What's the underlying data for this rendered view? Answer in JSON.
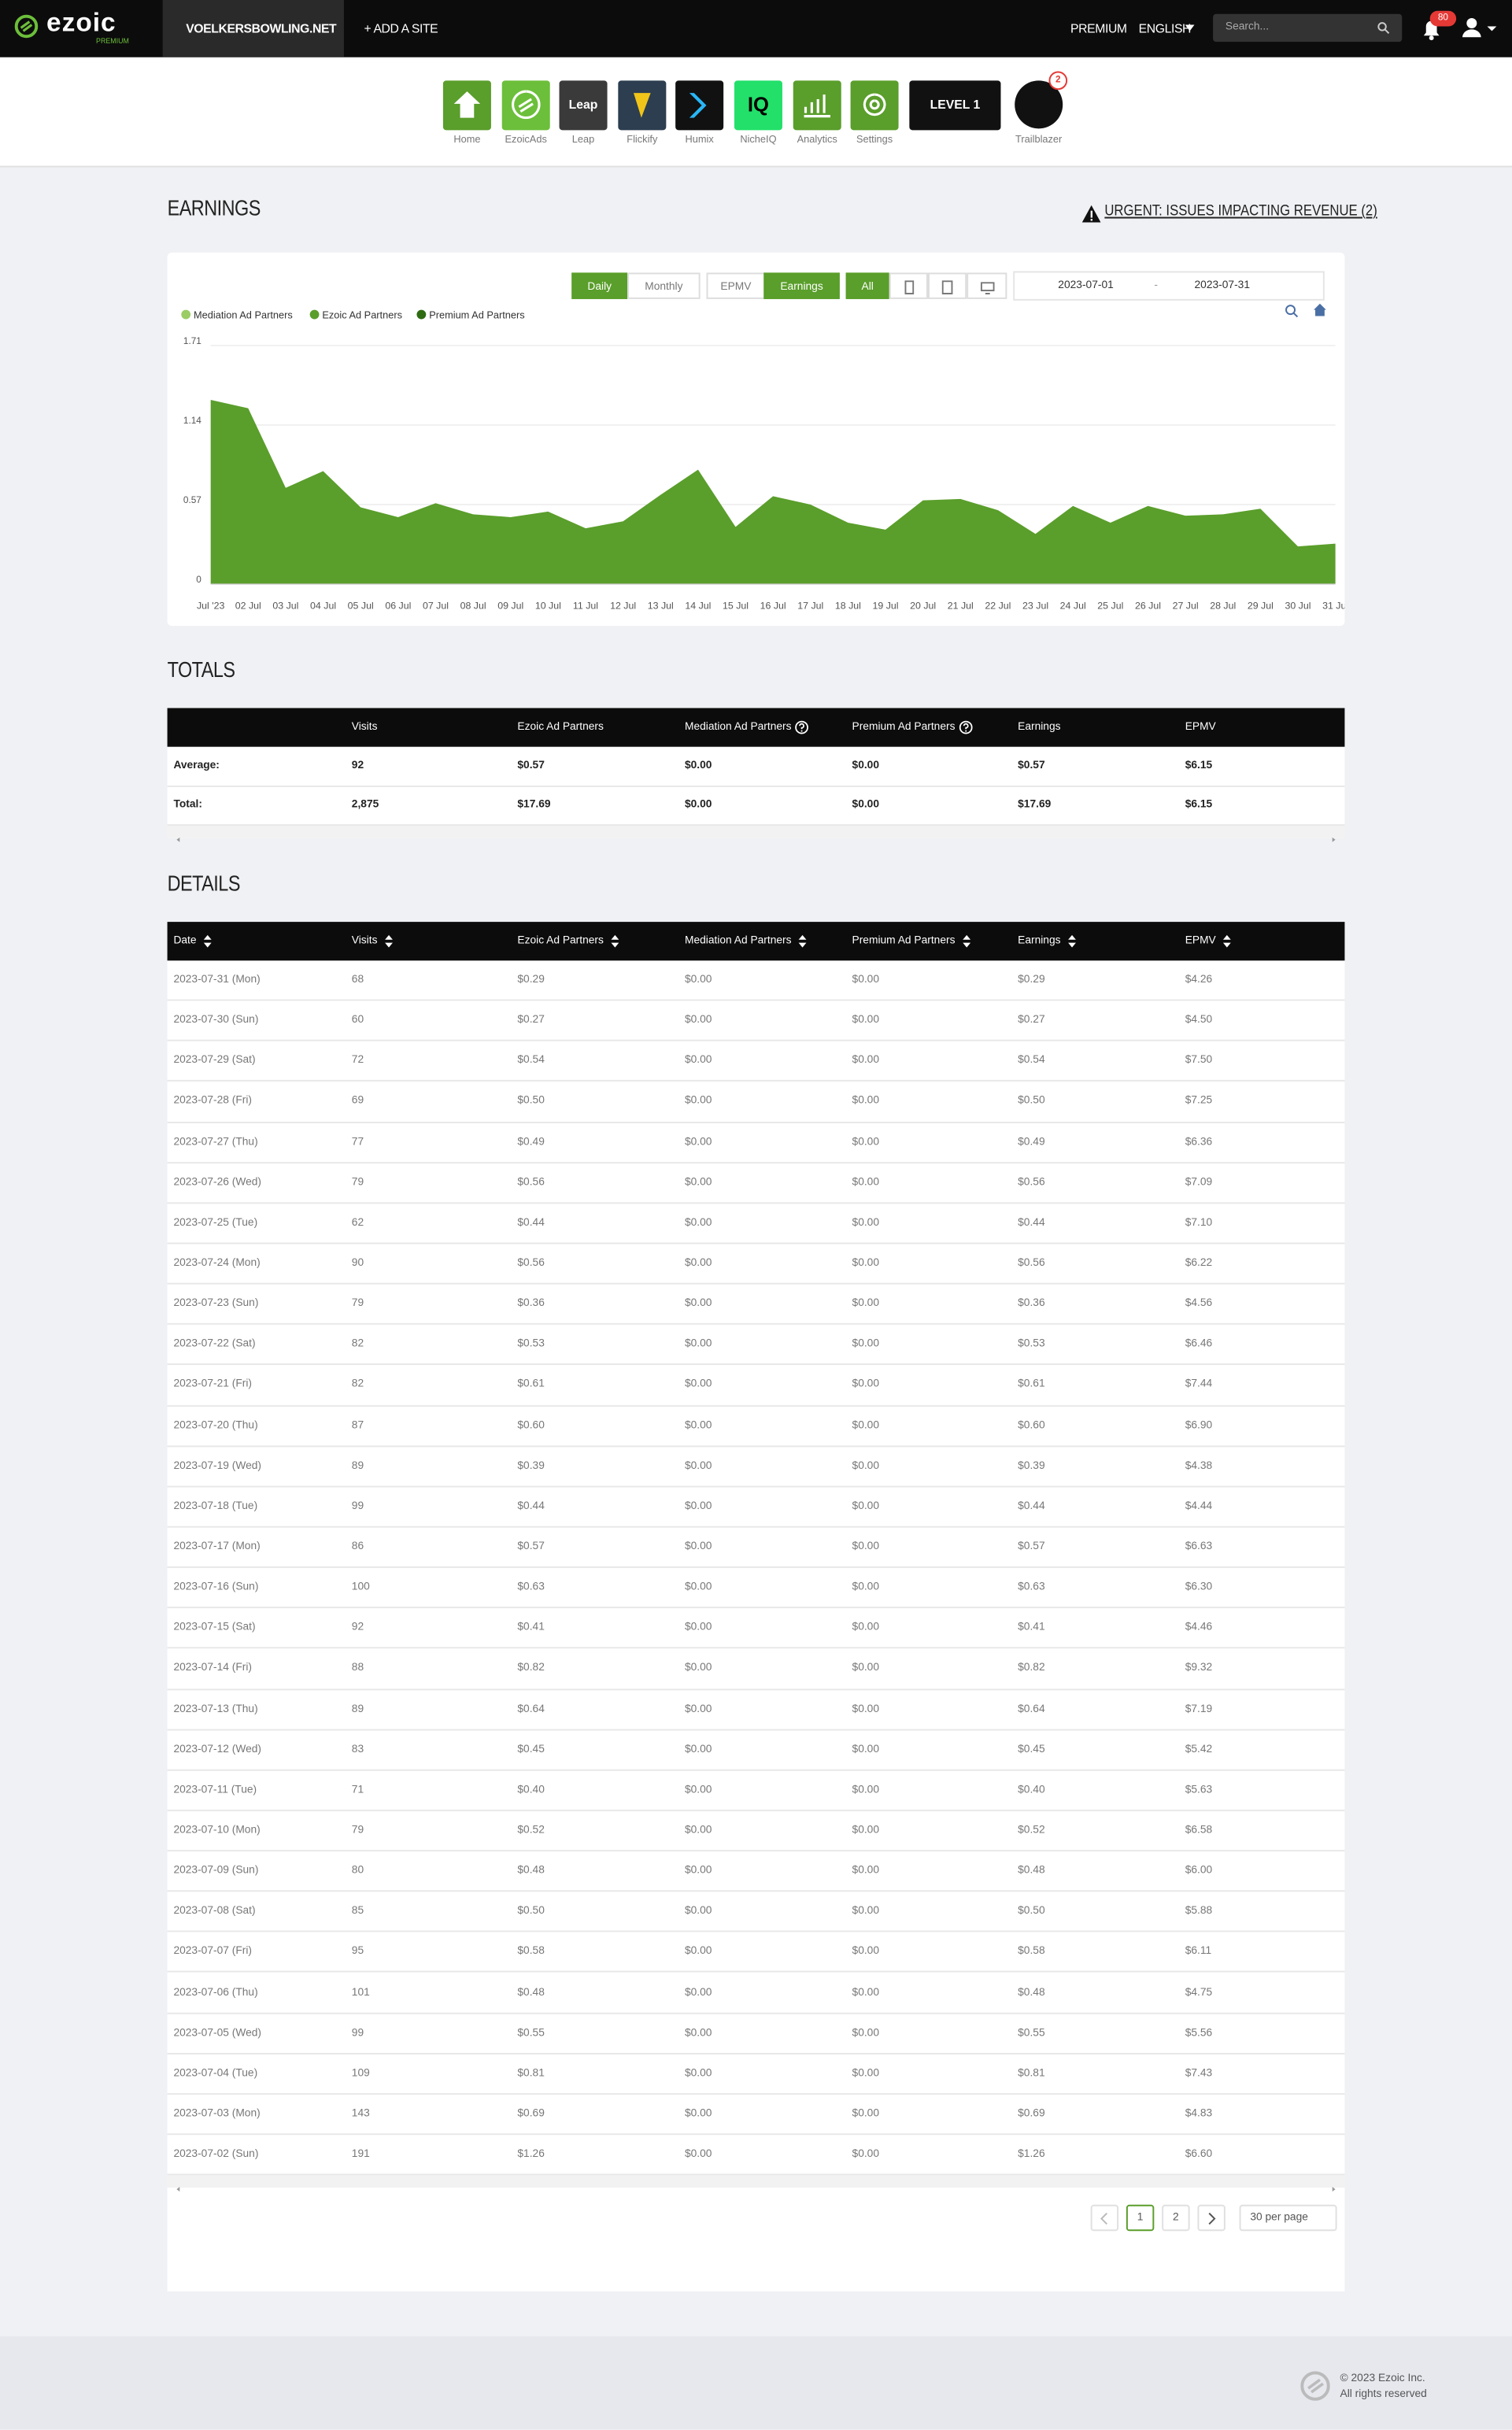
{
  "nav": {
    "logo": "ezoic",
    "logo_sub": "PREMIUM",
    "site": "VOELKERSBOWLING.NET",
    "add_site": "+ ADD A SITE",
    "premium": "PREMIUM",
    "language": "ENGLISH",
    "search_placeholder": "Search...",
    "notifications": "80"
  },
  "apps": [
    {
      "label": "Home",
      "color": "#5a9e2b"
    },
    {
      "label": "EzoicAds",
      "color": "#6cbf3a"
    },
    {
      "label": "Leap",
      "color": "#3a3a3a",
      "icon_text": "Leap"
    },
    {
      "label": "Flickify",
      "color": "#2c3e50"
    },
    {
      "label": "Humix",
      "color": "#111111"
    },
    {
      "label": "NicheIQ",
      "color": "#22e06a",
      "icon_text": "IQ"
    },
    {
      "label": "Analytics",
      "color": "#5a9e2b"
    },
    {
      "label": "Settings",
      "color": "#5a9e2b"
    },
    {
      "color": "#111111",
      "icon_text": "LEVEL 1"
    },
    {
      "label": "Trailblazer",
      "color": "#111111",
      "icon_text": "2"
    }
  ],
  "earnings": {
    "heading": "EARNINGS",
    "alert": "URGENT: ISSUES IMPACTING REVENUE (2)",
    "controls": {
      "period": [
        "Daily",
        "Monthly"
      ],
      "metric": [
        "EPMV",
        "Earnings"
      ],
      "device": "All",
      "date_from": "2023-07-01",
      "date_sep": "-",
      "date_to": "2023-07-31"
    }
  },
  "chart_data": {
    "type": "area",
    "stacked": true,
    "grid": true,
    "categories": [
      "Jul '23",
      "02 Jul",
      "03 Jul",
      "04 Jul",
      "05 Jul",
      "06 Jul",
      "07 Jul",
      "08 Jul",
      "09 Jul",
      "10 Jul",
      "11 Jul",
      "12 Jul",
      "13 Jul",
      "14 Jul",
      "15 Jul",
      "16 Jul",
      "17 Jul",
      "18 Jul",
      "19 Jul",
      "20 Jul",
      "21 Jul",
      "22 Jul",
      "23 Jul",
      "24 Jul",
      "25 Jul",
      "26 Jul",
      "27 Jul",
      "28 Jul",
      "29 Jul",
      "30 Jul",
      "31 Jul"
    ],
    "series": [
      {
        "name": "Mediation Ad Partners",
        "color": "#9ccc65",
        "values": [
          0,
          0,
          0,
          0,
          0,
          0,
          0,
          0,
          0,
          0,
          0,
          0,
          0,
          0,
          0,
          0,
          0,
          0,
          0,
          0,
          0,
          0,
          0,
          0,
          0,
          0,
          0,
          0,
          0,
          0,
          0
        ]
      },
      {
        "name": "Ezoic Ad Partners",
        "color": "#5a9e2b",
        "values": [
          1.32,
          1.26,
          0.69,
          0.81,
          0.55,
          0.48,
          0.58,
          0.5,
          0.48,
          0.52,
          0.4,
          0.45,
          0.64,
          0.82,
          0.41,
          0.63,
          0.57,
          0.44,
          0.39,
          0.6,
          0.61,
          0.53,
          0.36,
          0.56,
          0.44,
          0.56,
          0.49,
          0.5,
          0.54,
          0.27,
          0.29
        ]
      },
      {
        "name": "Premium Ad Partners",
        "color": "#2e6b12",
        "values": [
          0,
          0,
          0,
          0,
          0,
          0,
          0,
          0,
          0,
          0,
          0,
          0,
          0,
          0,
          0,
          0,
          0,
          0,
          0,
          0,
          0,
          0,
          0,
          0,
          0,
          0,
          0,
          0,
          0,
          0,
          0
        ]
      }
    ],
    "ylim": [
      0,
      1.71
    ],
    "yticks": [
      0,
      0.57,
      1.14,
      1.71
    ]
  },
  "totals": {
    "heading": "TOTALS",
    "columns": [
      "Visits",
      "Ezoic Ad Partners",
      "Mediation Ad Partners",
      "Premium Ad Partners",
      "Earnings",
      "EPMV"
    ],
    "rows": [
      [
        "Average:",
        "92",
        "$0.57",
        "$0.00",
        "$0.00",
        "$0.57",
        "$6.15"
      ],
      [
        "Total:",
        "2,875",
        "$17.69",
        "$0.00",
        "$0.00",
        "$17.69",
        "$6.15"
      ]
    ]
  },
  "details": {
    "heading": "DETAILS",
    "columns": [
      "Date",
      "Visits",
      "Ezoic Ad Partners",
      "Mediation Ad Partners",
      "Premium Ad Partners",
      "Earnings",
      "EPMV"
    ],
    "rows": [
      [
        "2023-07-31 (Mon)",
        "68",
        "$0.29",
        "$0.00",
        "$0.00",
        "$0.29",
        "$4.26"
      ],
      [
        "2023-07-30 (Sun)",
        "60",
        "$0.27",
        "$0.00",
        "$0.00",
        "$0.27",
        "$4.50"
      ],
      [
        "2023-07-29 (Sat)",
        "72",
        "$0.54",
        "$0.00",
        "$0.00",
        "$0.54",
        "$7.50"
      ],
      [
        "2023-07-28 (Fri)",
        "69",
        "$0.50",
        "$0.00",
        "$0.00",
        "$0.50",
        "$7.25"
      ],
      [
        "2023-07-27 (Thu)",
        "77",
        "$0.49",
        "$0.00",
        "$0.00",
        "$0.49",
        "$6.36"
      ],
      [
        "2023-07-26 (Wed)",
        "79",
        "$0.56",
        "$0.00",
        "$0.00",
        "$0.56",
        "$7.09"
      ],
      [
        "2023-07-25 (Tue)",
        "62",
        "$0.44",
        "$0.00",
        "$0.00",
        "$0.44",
        "$7.10"
      ],
      [
        "2023-07-24 (Mon)",
        "90",
        "$0.56",
        "$0.00",
        "$0.00",
        "$0.56",
        "$6.22"
      ],
      [
        "2023-07-23 (Sun)",
        "79",
        "$0.36",
        "$0.00",
        "$0.00",
        "$0.36",
        "$4.56"
      ],
      [
        "2023-07-22 (Sat)",
        "82",
        "$0.53",
        "$0.00",
        "$0.00",
        "$0.53",
        "$6.46"
      ],
      [
        "2023-07-21 (Fri)",
        "82",
        "$0.61",
        "$0.00",
        "$0.00",
        "$0.61",
        "$7.44"
      ],
      [
        "2023-07-20 (Thu)",
        "87",
        "$0.60",
        "$0.00",
        "$0.00",
        "$0.60",
        "$6.90"
      ],
      [
        "2023-07-19 (Wed)",
        "89",
        "$0.39",
        "$0.00",
        "$0.00",
        "$0.39",
        "$4.38"
      ],
      [
        "2023-07-18 (Tue)",
        "99",
        "$0.44",
        "$0.00",
        "$0.00",
        "$0.44",
        "$4.44"
      ],
      [
        "2023-07-17 (Mon)",
        "86",
        "$0.57",
        "$0.00",
        "$0.00",
        "$0.57",
        "$6.63"
      ],
      [
        "2023-07-16 (Sun)",
        "100",
        "$0.63",
        "$0.00",
        "$0.00",
        "$0.63",
        "$6.30"
      ],
      [
        "2023-07-15 (Sat)",
        "92",
        "$0.41",
        "$0.00",
        "$0.00",
        "$0.41",
        "$4.46"
      ],
      [
        "2023-07-14 (Fri)",
        "88",
        "$0.82",
        "$0.00",
        "$0.00",
        "$0.82",
        "$9.32"
      ],
      [
        "2023-07-13 (Thu)",
        "89",
        "$0.64",
        "$0.00",
        "$0.00",
        "$0.64",
        "$7.19"
      ],
      [
        "2023-07-12 (Wed)",
        "83",
        "$0.45",
        "$0.00",
        "$0.00",
        "$0.45",
        "$5.42"
      ],
      [
        "2023-07-11 (Tue)",
        "71",
        "$0.40",
        "$0.00",
        "$0.00",
        "$0.40",
        "$5.63"
      ],
      [
        "2023-07-10 (Mon)",
        "79",
        "$0.52",
        "$0.00",
        "$0.00",
        "$0.52",
        "$6.58"
      ],
      [
        "2023-07-09 (Sun)",
        "80",
        "$0.48",
        "$0.00",
        "$0.00",
        "$0.48",
        "$6.00"
      ],
      [
        "2023-07-08 (Sat)",
        "85",
        "$0.50",
        "$0.00",
        "$0.00",
        "$0.50",
        "$5.88"
      ],
      [
        "2023-07-07 (Fri)",
        "95",
        "$0.58",
        "$0.00",
        "$0.00",
        "$0.58",
        "$6.11"
      ],
      [
        "2023-07-06 (Thu)",
        "101",
        "$0.48",
        "$0.00",
        "$0.00",
        "$0.48",
        "$4.75"
      ],
      [
        "2023-07-05 (Wed)",
        "99",
        "$0.55",
        "$0.00",
        "$0.00",
        "$0.55",
        "$5.56"
      ],
      [
        "2023-07-04 (Tue)",
        "109",
        "$0.81",
        "$0.00",
        "$0.00",
        "$0.81",
        "$7.43"
      ],
      [
        "2023-07-03 (Mon)",
        "143",
        "$0.69",
        "$0.00",
        "$0.00",
        "$0.69",
        "$4.83"
      ],
      [
        "2023-07-02 (Sun)",
        "191",
        "$1.26",
        "$0.00",
        "$0.00",
        "$1.26",
        "$6.60"
      ]
    ],
    "pagination": {
      "pages": [
        "1",
        "2"
      ],
      "per_page": "30 per page"
    }
  },
  "footer": {
    "copyright": "© 2023 Ezoic Inc.",
    "rights": "All rights reserved"
  }
}
